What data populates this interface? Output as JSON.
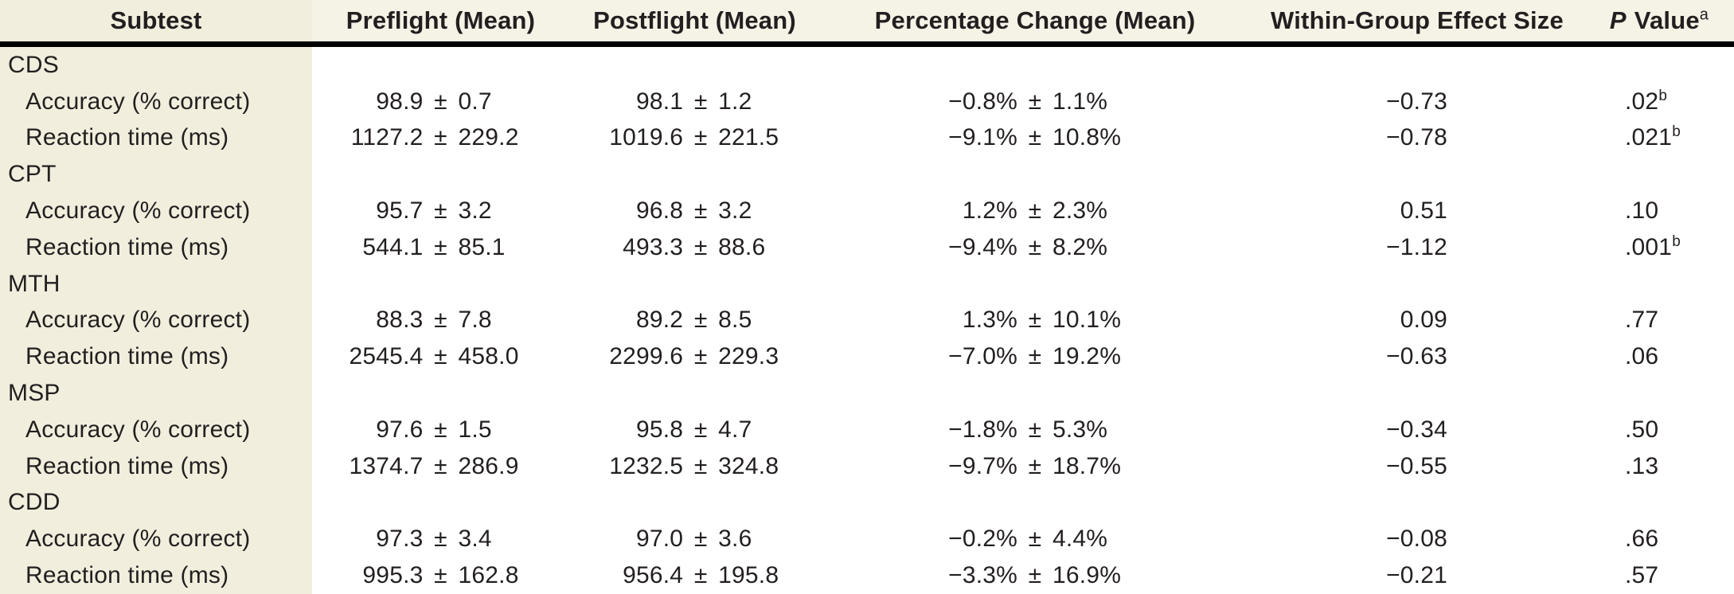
{
  "table": {
    "header": {
      "subtest": "Subtest",
      "preflight": "Preflight (Mean)",
      "postflight": "Postflight (Mean)",
      "pct_change": "Percentage Change (Mean)",
      "effect_size": "Within-Group Effect Size",
      "p_italic": "P",
      "p_rest": "Value",
      "p_sup": "a"
    },
    "symbols": {
      "plus_minus": "±"
    },
    "rows": [
      {
        "type": "group",
        "label": "CDS"
      },
      {
        "type": "data",
        "label": "Accuracy (% correct)",
        "pre_mean": "98.9",
        "pre_sd": "0.7",
        "post_mean": "98.1",
        "post_sd": "1.2",
        "pct_mean": "−0.8%",
        "pct_sd": "1.1%",
        "effect": "−0.73",
        "p": ".02",
        "p_sup": "b"
      },
      {
        "type": "data",
        "label": "Reaction time (ms)",
        "pre_mean": "1127.2",
        "pre_sd": "229.2",
        "post_mean": "1019.6",
        "post_sd": "221.5",
        "pct_mean": "−9.1%",
        "pct_sd": "10.8%",
        "effect": "−0.78",
        "p": ".021",
        "p_sup": "b"
      },
      {
        "type": "group",
        "label": "CPT"
      },
      {
        "type": "data",
        "label": "Accuracy (% correct)",
        "pre_mean": "95.7",
        "pre_sd": "3.2",
        "post_mean": "96.8",
        "post_sd": "3.2",
        "pct_mean": "1.2%",
        "pct_sd": "2.3%",
        "effect": "0.51",
        "p": ".10"
      },
      {
        "type": "data",
        "label": "Reaction time (ms)",
        "pre_mean": "544.1",
        "pre_sd": "85.1",
        "post_mean": "493.3",
        "post_sd": "88.6",
        "pct_mean": "−9.4%",
        "pct_sd": "8.2%",
        "effect": "−1.12",
        "p": ".001",
        "p_sup": "b"
      },
      {
        "type": "group",
        "label": "MTH"
      },
      {
        "type": "data",
        "label": "Accuracy (% correct)",
        "pre_mean": "88.3",
        "pre_sd": "7.8",
        "post_mean": "89.2",
        "post_sd": "8.5",
        "pct_mean": "1.3%",
        "pct_sd": "10.1%",
        "effect": "0.09",
        "p": ".77"
      },
      {
        "type": "data",
        "label": "Reaction time (ms)",
        "pre_mean": "2545.4",
        "pre_sd": "458.0",
        "post_mean": "2299.6",
        "post_sd": "229.3",
        "pct_mean": "−7.0%",
        "pct_sd": "19.2%",
        "effect": "−0.63",
        "p": ".06"
      },
      {
        "type": "group",
        "label": "MSP"
      },
      {
        "type": "data",
        "label": "Accuracy (% correct)",
        "pre_mean": "97.6",
        "pre_sd": "1.5",
        "post_mean": "95.8",
        "post_sd": "4.7",
        "pct_mean": "−1.8%",
        "pct_sd": "5.3%",
        "effect": "−0.34",
        "p": ".50"
      },
      {
        "type": "data",
        "label": "Reaction time (ms)",
        "pre_mean": "1374.7",
        "pre_sd": "286.9",
        "post_mean": "1232.5",
        "post_sd": "324.8",
        "pct_mean": "−9.7%",
        "pct_sd": "18.7%",
        "effect": "−0.55",
        "p": ".13"
      },
      {
        "type": "group",
        "label": "CDD"
      },
      {
        "type": "data",
        "label": "Accuracy (% correct)",
        "pre_mean": "97.3",
        "pre_sd": "3.4",
        "post_mean": "97.0",
        "post_sd": "3.6",
        "pct_mean": "−0.2%",
        "pct_sd": "4.4%",
        "effect": "−0.08",
        "p": ".66"
      },
      {
        "type": "data",
        "label": "Reaction time (ms)",
        "pre_mean": "995.3",
        "pre_sd": "162.8",
        "post_mean": "956.4",
        "post_sd": "195.8",
        "pct_mean": "−3.3%",
        "pct_sd": "16.9%",
        "effect": "−0.21",
        "p": ".57"
      }
    ]
  },
  "colors": {
    "first_column_shade": "#f2eedd",
    "header_shade": "#f5f2e6",
    "rule": "#000000",
    "text": "#231f20"
  }
}
